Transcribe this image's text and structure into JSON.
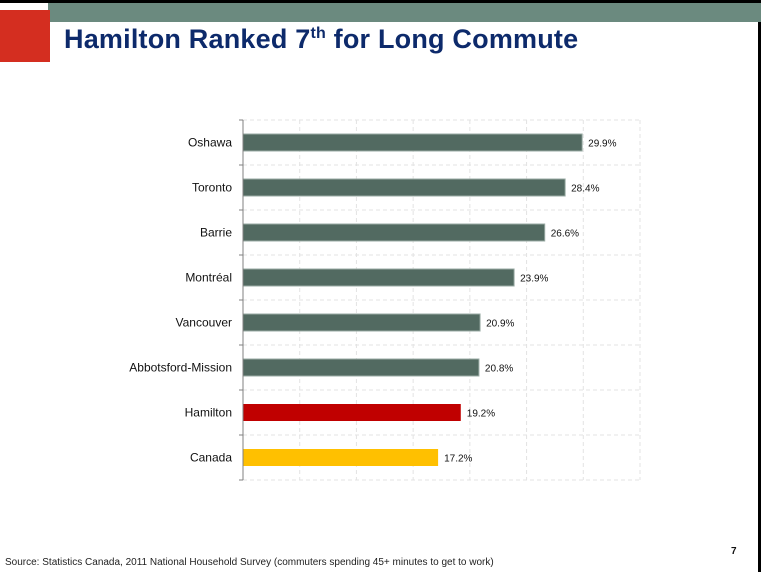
{
  "slide": {
    "title_main": "Hamilton Ranked 7",
    "title_sup": "th",
    "title_rest": " for Long Commute",
    "source": "Source: Statistics Canada, 2011 National Household Survey (commuters spending 45+ minutes to get to work)",
    "page_number": "7"
  },
  "colors": {
    "band": "#6b8a7f",
    "accent_red_block": "#d42e20",
    "title": "#0d2a6b",
    "bar_default": "#526a61",
    "bar_hamilton": "#c00000",
    "bar_canada": "#ffc000"
  },
  "chart_data": {
    "type": "bar",
    "orientation": "horizontal",
    "title": "Hamilton Ranked 7th for Long Commute",
    "xlabel": "",
    "ylabel": "",
    "categories": [
      "Oshawa",
      "Toronto",
      "Barrie",
      "Montréal",
      "Vancouver",
      "Abbotsford-Mission",
      "Hamilton",
      "Canada"
    ],
    "values": [
      29.9,
      28.4,
      26.6,
      23.9,
      20.9,
      20.8,
      19.2,
      17.2
    ],
    "labels": [
      "29.9%",
      "28.4%",
      "26.6%",
      "23.9%",
      "20.9%",
      "20.8%",
      "19.2%",
      "17.2%"
    ],
    "bar_colors": [
      "#526a61",
      "#526a61",
      "#526a61",
      "#526a61",
      "#526a61",
      "#526a61",
      "#c00000",
      "#ffc000"
    ],
    "xlim": [
      0,
      35
    ],
    "x_grid_step": 5,
    "grid": true,
    "legend": "none",
    "unit": "%"
  }
}
